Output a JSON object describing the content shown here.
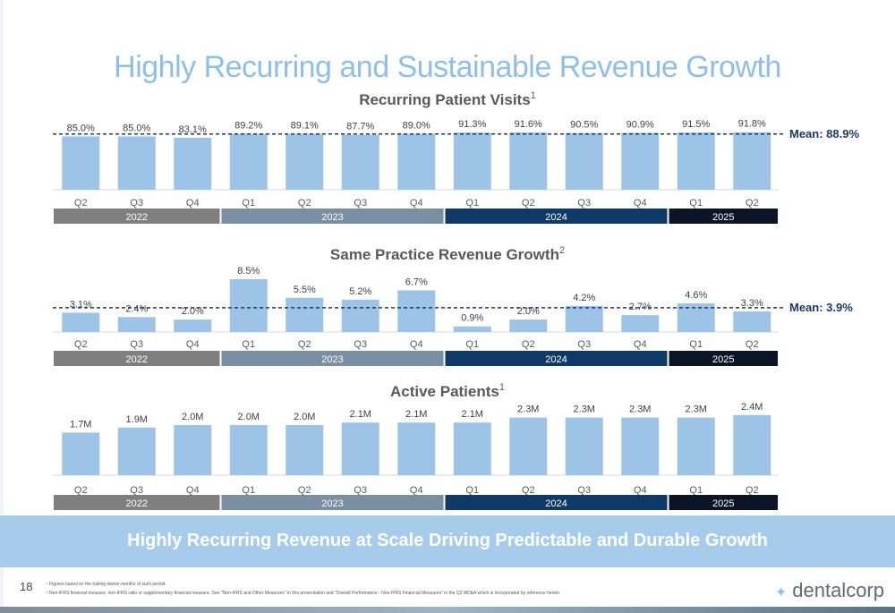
{
  "title": "Highly Recurring and Sustainable Revenue Growth",
  "banner": "Highly Recurring Revenue at Scale Driving Predictable and Durable Growth",
  "page_number": "18",
  "footnotes": [
    "¹ Figures based on the trailing twelve months of such period.",
    "² Non-IFRS financial measure, non-IFRS ratio or supplementary financial measure. See \"Non-IFRS and Other Measures\" in this presentation and \"Overall Performance - Non-IFRS Financial Measures\" in the Q2 MD&A which is incorporated by reference herein."
  ],
  "logo": "dentalcorp",
  "colors": {
    "bar": "#9dc3e6",
    "title": "#8fbfe9",
    "year_2022": "#7f7f7f",
    "year_2023": "#7a8fa3",
    "year_2024": "#0f3a68",
    "year_2025": "#0b1526",
    "mean_text": "#1f3864"
  },
  "chart_data": [
    {
      "type": "bar",
      "title": "Recurring Patient Visits",
      "title_sup": "1",
      "categories": [
        "Q2",
        "Q3",
        "Q4",
        "Q1",
        "Q2",
        "Q3",
        "Q4",
        "Q1",
        "Q2",
        "Q3",
        "Q4",
        "Q1",
        "Q2"
      ],
      "values": [
        85.0,
        85.0,
        83.1,
        89.2,
        89.1,
        87.7,
        89.0,
        91.3,
        91.6,
        90.5,
        90.9,
        91.5,
        91.8
      ],
      "labels": [
        "85.0%",
        "85.0%",
        "83.1%",
        "89.2%",
        "89.1%",
        "87.7%",
        "89.0%",
        "91.3%",
        "91.6%",
        "90.5%",
        "90.9%",
        "91.5%",
        "91.8%"
      ],
      "mean": 88.9,
      "mean_label": "Mean: 88.9%",
      "ylim": [
        0,
        100
      ],
      "years": [
        {
          "label": "2022",
          "quarters": 3
        },
        {
          "label": "2023",
          "quarters": 4
        },
        {
          "label": "2024",
          "quarters": 4
        },
        {
          "label": "2025",
          "quarters": 2
        }
      ]
    },
    {
      "type": "bar",
      "title": "Same Practice Revenue Growth",
      "title_sup": "2",
      "categories": [
        "Q2",
        "Q3",
        "Q4",
        "Q1",
        "Q2",
        "Q3",
        "Q4",
        "Q1",
        "Q2",
        "Q3",
        "Q4",
        "Q1",
        "Q2"
      ],
      "values": [
        3.1,
        2.4,
        2.0,
        8.5,
        5.5,
        5.2,
        6.7,
        0.9,
        2.0,
        4.2,
        2.7,
        4.6,
        3.3
      ],
      "labels": [
        "3.1%",
        "2.4%",
        "2.0%",
        "8.5%",
        "5.5%",
        "5.2%",
        "6.7%",
        "0.9%",
        "2.0%",
        "4.2%",
        "2.7%",
        "4.6%",
        "3.3%"
      ],
      "mean": 3.9,
      "mean_label": "Mean: 3.9%",
      "ylim": [
        0,
        9.5
      ],
      "years": [
        {
          "label": "2022",
          "quarters": 3
        },
        {
          "label": "2023",
          "quarters": 4
        },
        {
          "label": "2024",
          "quarters": 4
        },
        {
          "label": "2025",
          "quarters": 2
        }
      ]
    },
    {
      "type": "bar",
      "title": "Active Patients",
      "title_sup": "1",
      "categories": [
        "Q2",
        "Q3",
        "Q4",
        "Q1",
        "Q2",
        "Q3",
        "Q4",
        "Q1",
        "Q2",
        "Q3",
        "Q4",
        "Q1",
        "Q2"
      ],
      "values": [
        1.7,
        1.9,
        2.0,
        2.0,
        2.0,
        2.1,
        2.1,
        2.1,
        2.3,
        2.3,
        2.3,
        2.3,
        2.4
      ],
      "labels": [
        "1.7M",
        "1.9M",
        "2.0M",
        "2.0M",
        "2.0M",
        "2.1M",
        "2.1M",
        "2.1M",
        "2.3M",
        "2.3M",
        "2.3M",
        "2.3M",
        "2.4M"
      ],
      "ylim": [
        0,
        3.0
      ],
      "years": [
        {
          "label": "2022",
          "quarters": 3
        },
        {
          "label": "2023",
          "quarters": 4
        },
        {
          "label": "2024",
          "quarters": 4
        },
        {
          "label": "2025",
          "quarters": 2
        }
      ]
    }
  ]
}
